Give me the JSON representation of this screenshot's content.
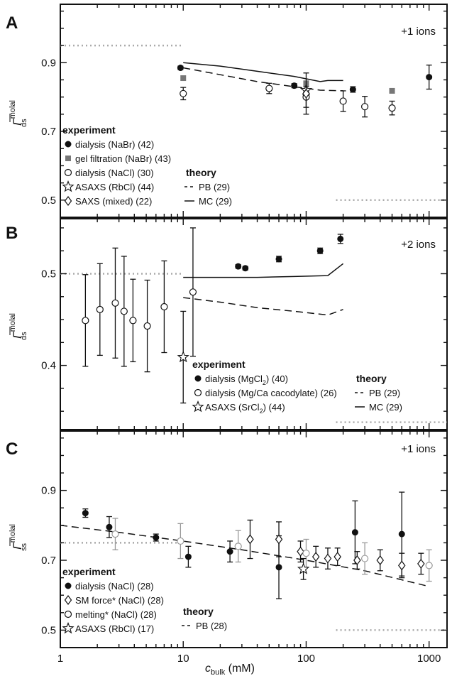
{
  "figure": {
    "x_label": "c",
    "x_label_sub": "bulk",
    "x_label_unit": " (mM)"
  },
  "chart_data": [
    {
      "type": "scatter",
      "panel": "A",
      "ion_label": "+1 ions",
      "ylabel": "Γ",
      "ylabel_sup": "molal",
      "ylabel_sub": "ds",
      "x_scale": "log",
      "xlim": [
        1,
        1400
      ],
      "ylim": [
        0.45,
        1.07
      ],
      "x_ticks": [
        1,
        10,
        100,
        1000
      ],
      "x_tick_labels": [
        "1",
        "10",
        "100",
        "1000"
      ],
      "y_ticks": [
        0.9,
        0.7,
        0.5
      ],
      "y_tick_labels": [
        "0.9",
        "0.7",
        "0.5"
      ],
      "ref_lines": [
        {
          "x": [
            1,
            10
          ],
          "y": 0.95
        },
        {
          "x": [
            175,
            1400
          ],
          "y": 0.5
        }
      ],
      "series": [
        {
          "name": "dialysis (NaBr) (42)",
          "marker": "filled-circle",
          "points": [
            [
              9.5,
              0.885,
              0.005
            ],
            [
              80,
              0.833,
              0.006
            ],
            [
              240,
              0.822,
              0.008
            ],
            [
              1000,
              0.858,
              0.035
            ]
          ]
        },
        {
          "name": "gel filtration (NaBr) (43)",
          "marker": "square",
          "points": [
            [
              10,
              0.855
            ],
            [
              100,
              0.84
            ],
            [
              500,
              0.818
            ]
          ]
        },
        {
          "name": "dialysis (NaCl) (30)",
          "marker": "open-circle",
          "points": [
            [
              10,
              0.81,
              0.018
            ],
            [
              50,
              0.825,
              0.015
            ],
            [
              100,
              0.8,
              0.03
            ],
            [
              200,
              0.788,
              0.03
            ],
            [
              300,
              0.772,
              0.03
            ],
            [
              500,
              0.768,
              0.02
            ]
          ]
        },
        {
          "name": "ASAXS (RbCl) (44)",
          "marker": "star",
          "points": [
            [
              100,
              0.82
            ]
          ]
        },
        {
          "name": "SAXS (mixed) (22)",
          "marker": "diamond",
          "points": [
            [
              100,
              0.81,
              0.06
            ]
          ]
        },
        {
          "name": "PB (29)",
          "line": "dashed",
          "points": [
            [
              10,
              0.885
            ],
            [
              20,
              0.865
            ],
            [
              40,
              0.845
            ],
            [
              80,
              0.83
            ],
            [
              130,
              0.82
            ],
            [
              200,
              0.818
            ]
          ]
        },
        {
          "name": "MC (29)",
          "line": "solid",
          "points": [
            [
              10,
              0.9
            ],
            [
              20,
              0.89
            ],
            [
              40,
              0.875
            ],
            [
              80,
              0.86
            ],
            [
              130,
              0.845
            ],
            [
              150,
              0.848
            ],
            [
              200,
              0.848
            ]
          ]
        }
      ],
      "legend": {
        "experiment_title": "experiment",
        "experiment": [
          {
            "label": "dialysis (NaBr) (42)",
            "marker": "filled-circle"
          },
          {
            "label": "gel filtration (NaBr) (43)",
            "marker": "square"
          },
          {
            "label": "dialysis (NaCl) (30)",
            "marker": "open-circle"
          },
          {
            "label": "ASAXS (RbCl) (44)",
            "marker": "star"
          },
          {
            "label": "SAXS (mixed) (22)",
            "marker": "diamond"
          }
        ],
        "theory_title": "theory",
        "theory": [
          {
            "label": "PB (29)",
            "line": "dashed"
          },
          {
            "label": "MC (29)",
            "line": "solid"
          }
        ]
      }
    },
    {
      "type": "scatter",
      "panel": "B",
      "ion_label": "+2 ions",
      "ylabel": "Γ",
      "ylabel_sup": "molal",
      "ylabel_sub": "ds",
      "x_scale": "log",
      "xlim": [
        1,
        1400
      ],
      "ylim": [
        0.33,
        0.56
      ],
      "x_ticks": [
        1,
        10,
        100,
        1000
      ],
      "y_ticks": [
        0.5,
        0.4
      ],
      "y_tick_labels": [
        "0.5",
        "0.4"
      ],
      "ref_lines": [
        {
          "x": [
            1,
            10
          ],
          "y": 0.5
        },
        {
          "x": [
            175,
            1400
          ],
          "y": 0.338
        }
      ],
      "series": [
        {
          "name": "dialysis (MgCl2) (40)",
          "marker": "filled-circle",
          "points": [
            [
              28,
              0.508,
              0.002
            ],
            [
              32,
              0.506,
              0.002
            ],
            [
              60,
              0.516,
              0.003
            ],
            [
              130,
              0.525,
              0.003
            ],
            [
              190,
              0.538,
              0.005
            ]
          ]
        },
        {
          "name": "dialysis (Mg/Ca cacodylate) (26)",
          "marker": "open-circle",
          "points": [
            [
              1.6,
              0.449,
              0.05
            ],
            [
              2.1,
              0.461,
              0.05
            ],
            [
              2.8,
              0.468,
              0.06
            ],
            [
              3.3,
              0.459,
              0.06
            ],
            [
              3.9,
              0.449,
              0.045
            ],
            [
              5.1,
              0.443,
              0.05
            ],
            [
              7,
              0.464,
              0.05
            ],
            [
              12,
              0.48,
              0.07
            ]
          ]
        },
        {
          "name": "ASAXS (SrCl2) (44)",
          "marker": "star",
          "points": [
            [
              10,
              0.409,
              0.05
            ]
          ]
        },
        {
          "name": "PB (29)",
          "line": "dashed",
          "points": [
            [
              10,
              0.474
            ],
            [
              20,
              0.469
            ],
            [
              40,
              0.463
            ],
            [
              80,
              0.459
            ],
            [
              150,
              0.455
            ],
            [
              200,
              0.461
            ]
          ]
        },
        {
          "name": "MC (29)",
          "line": "solid",
          "points": [
            [
              10,
              0.496
            ],
            [
              20,
              0.496
            ],
            [
              40,
              0.496
            ],
            [
              80,
              0.497
            ],
            [
              150,
              0.498
            ],
            [
              200,
              0.511
            ]
          ]
        }
      ],
      "legend": {
        "experiment_title": "experiment",
        "experiment": [
          {
            "label": "dialysis (MgCl",
            "sub": "2",
            "label_end": ") (40)",
            "marker": "filled-circle"
          },
          {
            "label": "dialysis (Mg/Ca cacodylate) (26)",
            "marker": "open-circle"
          },
          {
            "label": "ASAXS (SrCl",
            "sub": "2",
            "label_end": ") (44)",
            "marker": "star"
          }
        ],
        "theory_title": "theory",
        "theory": [
          {
            "label": "PB (29)",
            "line": "dashed"
          },
          {
            "label": "MC (29)",
            "line": "solid"
          }
        ]
      }
    },
    {
      "type": "scatter",
      "panel": "C",
      "ion_label": "+1 ions",
      "ylabel": "Γ",
      "ylabel_sup": "molal",
      "ylabel_sub": "ss",
      "x_scale": "log",
      "xlim": [
        1,
        1400
      ],
      "ylim": [
        0.45,
        1.07
      ],
      "x_ticks": [
        1,
        10,
        100,
        1000
      ],
      "x_tick_labels": [
        "1",
        "10",
        "100",
        "1000"
      ],
      "y_ticks": [
        0.9,
        0.7,
        0.5
      ],
      "y_tick_labels": [
        "0.9",
        "0.7",
        "0.5"
      ],
      "ref_lines": [
        {
          "x": [
            1,
            10
          ],
          "y": 0.75
        },
        {
          "x": [
            175,
            1400
          ],
          "y": 0.5
        }
      ],
      "series": [
        {
          "name": "dialysis (NaCl) (28)",
          "marker": "filled-circle",
          "points": [
            [
              1.6,
              0.835,
              0.012
            ],
            [
              2.5,
              0.795,
              0.03
            ],
            [
              6,
              0.765,
              0.01
            ],
            [
              11,
              0.71,
              0.03
            ],
            [
              24,
              0.725,
              0.03
            ],
            [
              60,
              0.68,
              0.09
            ],
            [
              250,
              0.78,
              0.09
            ],
            [
              600,
              0.775,
              0.12
            ]
          ]
        },
        {
          "name": "SM force* (NaCl) (28)",
          "marker": "diamond",
          "points": [
            [
              35,
              0.76,
              0.055
            ],
            [
              60,
              0.76,
              0.05
            ],
            [
              90,
              0.725,
              0.03
            ],
            [
              120,
              0.71,
              0.03
            ],
            [
              150,
              0.705,
              0.03
            ],
            [
              180,
              0.71,
              0.025
            ],
            [
              260,
              0.7,
              0.025
            ],
            [
              400,
              0.7,
              0.03
            ],
            [
              600,
              0.685,
              0.035
            ],
            [
              860,
              0.69,
              0.03
            ]
          ]
        },
        {
          "name": "melting* (NaCl) (28)",
          "marker": "open-circle",
          "gray": true,
          "points": [
            [
              2.8,
              0.775,
              0.045
            ],
            [
              9.5,
              0.755,
              0.05
            ],
            [
              28,
              0.74,
              0.045
            ],
            [
              100,
              0.72,
              0.04
            ],
            [
              300,
              0.705,
              0.045
            ],
            [
              1000,
              0.685,
              0.045
            ]
          ]
        },
        {
          "name": "ASAXS (RbCl) (17)",
          "marker": "star",
          "points": [
            [
              95,
              0.675,
              0.03
            ]
          ]
        },
        {
          "name": "PB (28)",
          "line": "dashed",
          "points": [
            [
              1,
              0.8
            ],
            [
              3,
              0.78
            ],
            [
              10,
              0.755
            ],
            [
              30,
              0.73
            ],
            [
              100,
              0.7
            ],
            [
              300,
              0.67
            ],
            [
              1000,
              0.625
            ]
          ]
        }
      ],
      "legend": {
        "experiment_title": "experiment",
        "experiment": [
          {
            "label": "dialysis (NaCl) (28)",
            "marker": "filled-circle"
          },
          {
            "label": "SM force* (NaCl) (28)",
            "marker": "diamond"
          },
          {
            "label": "melting* (NaCl) (28)",
            "marker": "open-circle"
          },
          {
            "label": "ASAXS (RbCl) (17)",
            "marker": "star"
          }
        ],
        "theory_title": "theory",
        "theory": [
          {
            "label": "PB (28)",
            "line": "dashed"
          }
        ]
      }
    }
  ]
}
